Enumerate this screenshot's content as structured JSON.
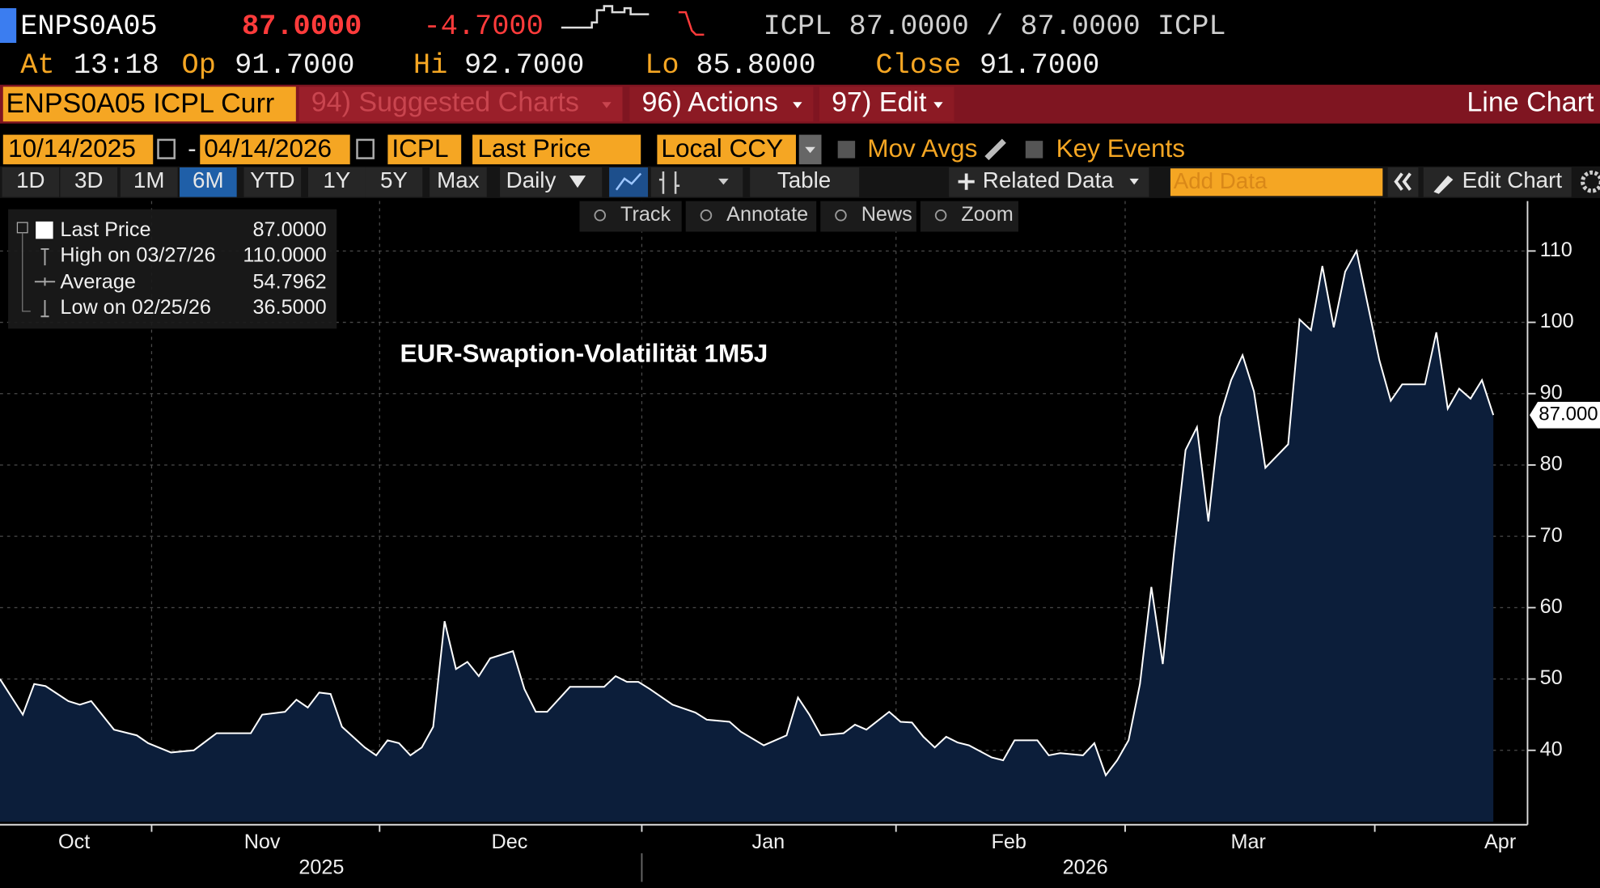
{
  "header": {
    "ticker": "ENPS0A05",
    "last": "87.0000",
    "change": "-4.7000",
    "quote": "ICPL 87.0000 / 87.0000 ICPL",
    "stats": [
      {
        "label": "At",
        "value": "13:18"
      },
      {
        "label": "Op",
        "value": "91.7000"
      },
      {
        "label": "Hi",
        "value": "92.7000"
      },
      {
        "label": "Lo",
        "value": "85.8000"
      },
      {
        "label": "Close",
        "value": "91.7000"
      }
    ]
  },
  "menu": {
    "security": "ENPS0A05 ICPL Curr",
    "items": [
      "94) Suggested Charts",
      "96) Actions",
      "97) Edit"
    ],
    "view": "Line Chart"
  },
  "settings": {
    "start": "10/14/2025",
    "separator": "-",
    "end": "04/14/2026",
    "source": "ICPL",
    "field": "Last Price",
    "currency": "Local CCY",
    "toggles": [
      "Mov Avgs",
      "Key Events"
    ]
  },
  "toolbar": {
    "ranges": [
      "1D",
      "3D",
      "1M",
      "6M",
      "YTD",
      "1Y",
      "5Y",
      "Max"
    ],
    "active_range": 3,
    "frequency": "Daily",
    "table": "Table",
    "related": "Related Data",
    "add_data": "Add Data",
    "edit": "Edit Chart"
  },
  "chart_tools": [
    "Track",
    "Annotate",
    "News",
    "Zoom"
  ],
  "chart_data": {
    "type": "line",
    "title": "EUR-Swaption-Volatilität 1M5J",
    "x": [
      0,
      2,
      3,
      4,
      6,
      7,
      8,
      10,
      12,
      13,
      15,
      17,
      19,
      22,
      23,
      25,
      26,
      27,
      28,
      29,
      30,
      32,
      33,
      34,
      35,
      36,
      37,
      38,
      39,
      40,
      41,
      42,
      43,
      45,
      46,
      47,
      48,
      50,
      53,
      54,
      55,
      56,
      57,
      59,
      61,
      62,
      64,
      65,
      67,
      69,
      70,
      71,
      72,
      74,
      75,
      76,
      78,
      79,
      80,
      81,
      82,
      83,
      84,
      85,
      87,
      88,
      89,
      91,
      92,
      93,
      95,
      96,
      97,
      98,
      99,
      100,
      101,
      102,
      103,
      104,
      105,
      106,
      107,
      108,
      109,
      110,
      111,
      113,
      114,
      115,
      116,
      117,
      118,
      119,
      121,
      122,
      123,
      125,
      126,
      127,
      128,
      129,
      130,
      131
    ],
    "series": [
      {
        "name": "Last Price",
        "color": "#ffffff",
        "fill": "#0c1e3a",
        "value_text": "87.0000",
        "values": [
          50,
          45,
          49.3,
          49,
          46.9,
          46.4,
          46.9,
          42.9,
          42.1,
          41,
          39.7,
          40,
          42.4,
          42.4,
          45,
          45.4,
          47.1,
          46,
          48.1,
          47.9,
          43.3,
          40.4,
          39.3,
          41.4,
          41,
          39.3,
          40.4,
          43.3,
          58.1,
          51.4,
          52.4,
          50.4,
          52.9,
          53.9,
          48.6,
          45.4,
          45.4,
          48.9,
          48.9,
          50.4,
          49.6,
          49.6,
          48.6,
          46.4,
          45.3,
          44.3,
          44,
          42.6,
          40.7,
          42.1,
          47.4,
          45,
          42.1,
          42.4,
          43.6,
          42.9,
          45.4,
          44,
          43.9,
          41.9,
          40.4,
          41.9,
          41.1,
          40.7,
          39,
          38.6,
          41.4,
          41.4,
          39.3,
          39.6,
          39.3,
          41,
          36.5,
          38.6,
          41.4,
          49.3,
          62.9,
          52.1,
          67.9,
          82.1,
          85.3,
          72.1,
          86.7,
          91.9,
          95.4,
          90.3,
          79.6,
          82.9,
          100.4,
          98.9,
          107.9,
          99.3,
          107.1,
          110,
          94.7,
          89,
          91.3,
          91.3,
          98.6,
          87.9,
          90.7,
          89.3,
          91.9,
          87
        ]
      }
    ],
    "xlim": [
      0,
      134
    ],
    "ylim": [
      30,
      117
    ],
    "yticks": [
      40,
      50,
      60,
      70,
      80,
      90,
      100,
      110
    ],
    "xticks": [
      13.3,
      33.3,
      56.3,
      78.6,
      98.7,
      120.6
    ],
    "grid": true,
    "month_labels": [
      {
        "value": 6.5,
        "label": "Oct"
      },
      {
        "value": 23,
        "label": "Nov"
      },
      {
        "value": 44.7,
        "label": "Dec"
      },
      {
        "value": 67.4,
        "label": "Jan"
      },
      {
        "value": 88.5,
        "label": "Feb"
      },
      {
        "value": 109.5,
        "label": "Mar"
      },
      {
        "value": 131.6,
        "label": "Apr"
      }
    ],
    "year_labels": [
      {
        "value": 28.2,
        "label": "2025"
      },
      {
        "value": 95.2,
        "label": "2026"
      }
    ],
    "year_ticks": [
      56.3
    ],
    "stats": [
      {
        "label": "High on 03/27/26",
        "value": "110.0000"
      },
      {
        "label": "Average",
        "value": "54.7962"
      },
      {
        "label": "Low on 02/25/26",
        "value": "36.5000"
      }
    ],
    "last_label": {
      "value": 87,
      "label": "87.000"
    }
  }
}
